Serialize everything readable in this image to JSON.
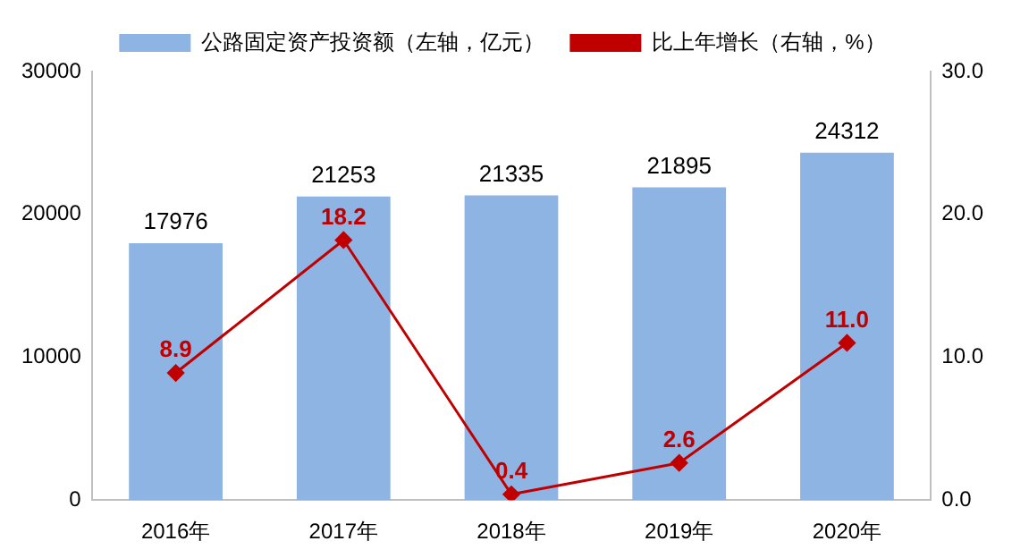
{
  "chart_data": {
    "type": "bar",
    "categories": [
      "2016年",
      "2017年",
      "2018年",
      "2019年",
      "2020年"
    ],
    "series": [
      {
        "name": "公路固定资产投资额（左轴，亿元）",
        "color": "#8db4e2",
        "values": [
          17976,
          21253,
          21335,
          21895,
          24312
        ],
        "value_labels": [
          "17976",
          "21253",
          "21335",
          "21895",
          "24312"
        ]
      },
      {
        "name": "比上年增长（右轴，%）",
        "type": "line",
        "axis": "y2",
        "color": "#c00000",
        "marker": "diamond",
        "line_style": "solid",
        "values": [
          8.9,
          18.2,
          0.4,
          2.6,
          11.0
        ],
        "value_labels": [
          "8.9",
          "18.2",
          "0.4",
          "2.6",
          "11.0"
        ]
      }
    ],
    "ylim": [
      0,
      30000
    ],
    "yticks": [
      0,
      10000,
      20000,
      30000
    ],
    "y2lim": [
      0,
      30
    ],
    "y2ticks": [
      {
        "value": 0,
        "label": "0.0"
      },
      {
        "value": 10,
        "label": "10.0"
      },
      {
        "value": 20,
        "label": "20.0"
      },
      {
        "value": 30,
        "label": "30.0"
      }
    ],
    "grid": false,
    "legend": "top"
  }
}
